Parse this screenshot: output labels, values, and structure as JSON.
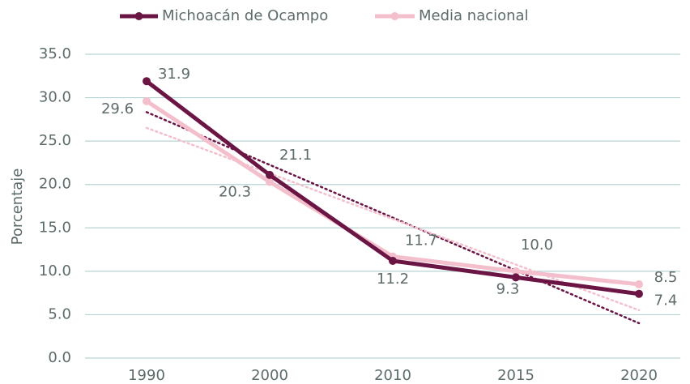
{
  "chart_data": {
    "type": "line",
    "y_label": "Porcentaje",
    "categories": [
      "1990",
      "2000",
      "2010",
      "2015",
      "2020"
    ],
    "series": [
      {
        "name": "Michoacán de Ocampo",
        "color": "#6b1545",
        "values": [
          31.9,
          21.1,
          11.2,
          9.3,
          7.4
        ],
        "value_labels": [
          "31.9",
          "21.1",
          "11.2",
          "9.3",
          "7.4"
        ]
      },
      {
        "name": "Media nacional",
        "color": "#f4bfcc",
        "values": [
          29.6,
          20.3,
          11.7,
          10.0,
          8.5
        ],
        "value_labels": [
          "29.6",
          "20.3",
          "11.7",
          "10.0",
          "8.5"
        ]
      }
    ],
    "ylim": [
      0,
      35
    ],
    "yticks": [
      {
        "value": 0,
        "label": "0.0"
      },
      {
        "value": 5,
        "label": "5.0"
      },
      {
        "value": 10,
        "label": "10.0"
      },
      {
        "value": 15,
        "label": "15.0"
      },
      {
        "value": 20,
        "label": "20.0"
      },
      {
        "value": 25,
        "label": "25.0"
      },
      {
        "value": 30,
        "label": "30.0"
      },
      {
        "value": 35,
        "label": "35.0"
      }
    ],
    "grid": true,
    "trendline": true,
    "legend": "top"
  }
}
